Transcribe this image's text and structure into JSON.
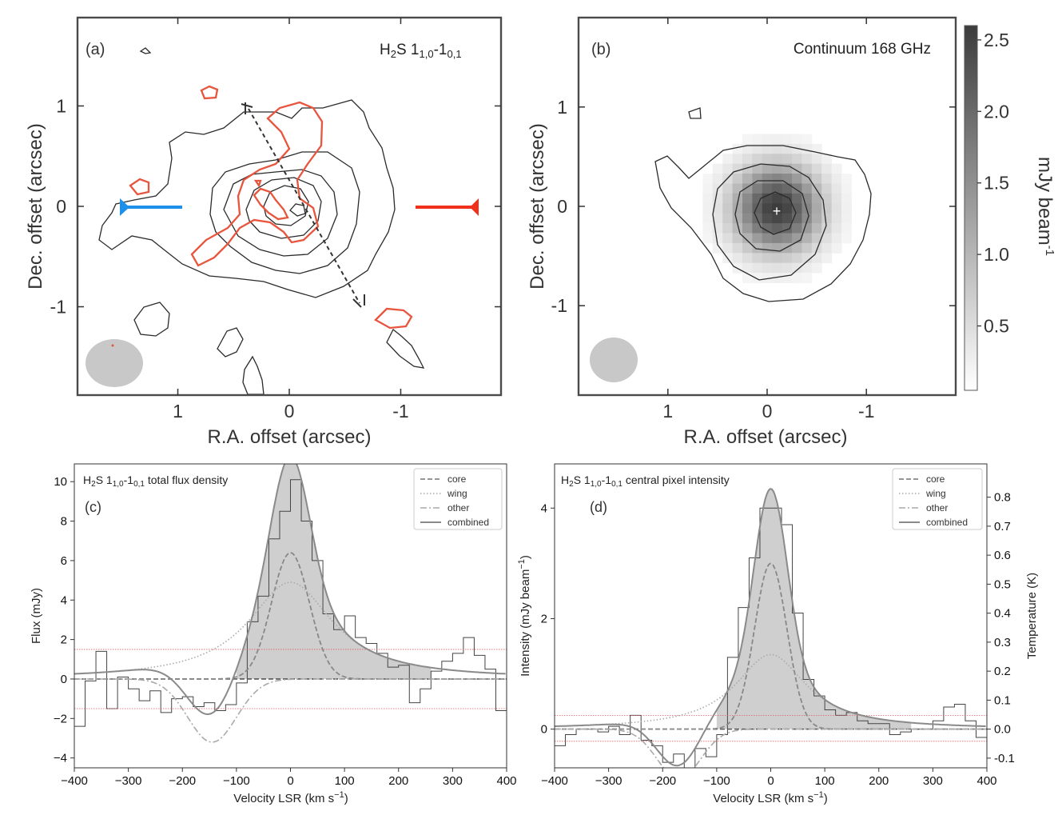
{
  "colors": {
    "frame": "#4a4a4a",
    "red_contour": "#e8553e",
    "blue_marker": "#1e90ea",
    "red_marker": "#f0301a",
    "hist_fill": "#cccccc",
    "model_line": "#8a8a8a",
    "noise_line": "#e06060"
  },
  "chart_data": [
    {
      "id": "a",
      "type": "contour",
      "panel_label": "(a)",
      "title": "H2S 11,0-10,1",
      "title_parts": {
        "mol": "H",
        "sub1": "2",
        "mid": "S 1",
        "sub2": "1,0",
        "dash": "-1",
        "sub3": "0,1"
      },
      "xlabel": "R.A. offset (arcsec)",
      "ylabel": "Dec. offset (arcsec)",
      "xlim": [
        1.9,
        -1.9
      ],
      "ylim": [
        -1.88,
        1.88
      ],
      "xticks": [
        1,
        0,
        -1
      ],
      "xtick_labels": [
        "1",
        "0",
        "-1"
      ],
      "yticks": [
        1,
        0,
        -1
      ],
      "ytick_labels": [
        "1",
        "0",
        "-1"
      ],
      "annotations": [
        "dashed double arrow from (0.45, 0.95) to (-0.58, -1.0)",
        "blue velocity marker at Dec 0 (left)",
        "red velocity marker at Dec 0 (right)"
      ]
    },
    {
      "id": "b",
      "type": "heatmap",
      "panel_label": "(b)",
      "title": "Continuum 168 GHz",
      "xlabel": "R.A. offset (arcsec)",
      "ylabel": "Dec. offset (arcsec)",
      "xlim": [
        1.9,
        -1.9
      ],
      "ylim": [
        -1.9,
        1.9
      ],
      "xticks": [
        1,
        0,
        -1
      ],
      "xtick_labels": [
        "1",
        "0",
        "-1"
      ],
      "yticks": [
        1,
        0,
        -1
      ],
      "ytick_labels": [
        "1",
        "0",
        "-1"
      ],
      "colorbar": {
        "label": "mJy beam-1",
        "label_main": "mJy beam",
        "label_sup": "-1",
        "range": [
          0.05,
          2.6
        ],
        "ticks": [
          0.5,
          1.0,
          1.5,
          2.0,
          2.5
        ],
        "tick_labels": [
          "0.5",
          "1.0",
          "1.5",
          "2.0",
          "2.5"
        ]
      },
      "peak": {
        "x": -0.1,
        "y": -0.02
      }
    },
    {
      "id": "c",
      "type": "bar",
      "panel_label": "(c)",
      "title": "H2S 11,0-10,1 total flux density",
      "title_parts": {
        "mol": "H",
        "sub1": "2",
        "mid": "S 1",
        "sub2": "1,0",
        "dash": "-1",
        "sub3": "0,1",
        "rest": " total flux density"
      },
      "xlabel": "Velocity LSR (km s−1)",
      "xlabel_main": "Velocity LSR (km s",
      "xlabel_sup": "−1",
      "xlabel_close": ")",
      "ylabel": "Flux (mJy)",
      "xlim": [
        -400,
        400
      ],
      "ylim": [
        -4.5,
        10.9
      ],
      "xticks": [
        -400,
        -300,
        -200,
        -100,
        0,
        100,
        200,
        300,
        400
      ],
      "xtick_labels": [
        "−400",
        "−300",
        "−200",
        "−100",
        "0",
        "100",
        "200",
        "300",
        "400"
      ],
      "yticks": [
        -4,
        -2,
        0,
        2,
        4,
        6,
        8,
        10
      ],
      "ytick_labels": [
        "−4",
        "−2",
        "0",
        "2",
        "4",
        "6",
        "8",
        "10"
      ],
      "noise_levels": [
        1.5,
        -1.5
      ],
      "histogram": {
        "edges": [
          -400,
          -380,
          -360,
          -340,
          -320,
          -300,
          -280,
          -260,
          -240,
          -220,
          -200,
          -180,
          -160,
          -140,
          -120,
          -100,
          -80,
          -60,
          -40,
          -20,
          0,
          20,
          40,
          60,
          80,
          100,
          120,
          140,
          160,
          180,
          200,
          220,
          240,
          260,
          280,
          300,
          320,
          340,
          360,
          380,
          400
        ],
        "values": [
          -2.4,
          -0.1,
          1.4,
          -1.5,
          0.1,
          -0.5,
          -1.1,
          -0.6,
          -1.7,
          -1.0,
          -0.9,
          -1.4,
          -1.2,
          -1.6,
          -1.3,
          -0.2,
          2.9,
          4.2,
          7.1,
          8.5,
          10.1,
          8.0,
          6.0,
          3.3,
          2.5,
          3.2,
          2.1,
          1.8,
          1.3,
          0.6,
          0.7,
          -1.2,
          -0.5,
          0.4,
          0.9,
          1.3,
          2.1,
          1.2,
          0.5,
          -1.6
        ]
      },
      "models": {
        "core": {
          "amp": 6.4,
          "center": 0,
          "sigma": 35
        },
        "wing": {
          "amp": 4.9,
          "center": 0,
          "hwhm": 95
        },
        "other": {
          "amp": -3.2,
          "center": -145,
          "sigma": 45
        },
        "combined": "core + wing + other"
      },
      "legend": [
        "core",
        "wing",
        "other",
        "combined"
      ],
      "legend_loc": "top-right"
    },
    {
      "id": "d",
      "type": "bar",
      "panel_label": "(d)",
      "title": "H2S 11,0-10,1 central pixel intensity",
      "title_parts": {
        "mol": "H",
        "sub1": "2",
        "mid": "S 1",
        "sub2": "1,0",
        "dash": "-1",
        "sub3": "0,1",
        "rest": " central pixel intensity"
      },
      "xlabel": "Velocity LSR (km s−1)",
      "xlabel_main": "Velocity LSR (km s",
      "xlabel_sup": "−1",
      "xlabel_close": ")",
      "ylabel": "Intensity (mJy beam−1)",
      "ylabel_main": "Intensity (mJy beam",
      "ylabel_sup": "−1",
      "ylabel_close": ")",
      "y2label": "Temperature (K)",
      "xlim": [
        -400,
        400
      ],
      "ylim": [
        -0.7,
        4.8
      ],
      "xticks": [
        -400,
        -300,
        -200,
        -100,
        0,
        100,
        200,
        300,
        400
      ],
      "xtick_labels": [
        "−400",
        "−300",
        "−200",
        "−100",
        "0",
        "100",
        "200",
        "300",
        "400"
      ],
      "yticks": [
        0,
        2,
        4
      ],
      "ytick_labels": [
        "0",
        "2",
        "4"
      ],
      "y2_factor": 0.1906,
      "y2ticks": [
        -0.1,
        0.0,
        0.1,
        0.2,
        0.3,
        0.4,
        0.5,
        0.6,
        0.7,
        0.8
      ],
      "y2tick_labels": [
        "-0.1",
        "0.0",
        "0.1",
        "0.2",
        "0.3",
        "0.4",
        "0.5",
        "0.6",
        "0.7",
        "0.8"
      ],
      "noise_levels": [
        0.25,
        -0.22
      ],
      "histogram": {
        "edges": [
          -400,
          -380,
          -360,
          -340,
          -320,
          -300,
          -280,
          -260,
          -240,
          -220,
          -200,
          -180,
          -160,
          -140,
          -120,
          -100,
          -80,
          -60,
          -40,
          -20,
          0,
          20,
          40,
          60,
          80,
          100,
          120,
          140,
          160,
          180,
          200,
          220,
          240,
          260,
          280,
          300,
          320,
          340,
          360,
          380,
          400
        ],
        "values": [
          -0.3,
          -0.1,
          0.0,
          0.0,
          -0.05,
          0.05,
          -0.1,
          0.25,
          -0.2,
          -0.3,
          -0.6,
          -0.45,
          -0.7,
          -0.35,
          -0.5,
          -0.1,
          1.3,
          2.2,
          3.1,
          4.0,
          4.0,
          3.7,
          2.1,
          0.9,
          0.6,
          0.35,
          0.25,
          0.3,
          0.15,
          0.1,
          0.1,
          -0.1,
          -0.05,
          0.0,
          0.0,
          0.15,
          0.4,
          0.45,
          0.15,
          -0.15
        ]
      },
      "models": {
        "core": {
          "amp": 3.0,
          "center": 0,
          "sigma": 30
        },
        "wing": {
          "amp": 1.35,
          "center": 0,
          "hwhm": 80
        },
        "other": {
          "amp": -0.9,
          "center": -170,
          "sigma": 40
        },
        "combined": "core + wing + other"
      },
      "legend": [
        "core",
        "wing",
        "other",
        "combined"
      ],
      "legend_loc": "top-right"
    }
  ]
}
